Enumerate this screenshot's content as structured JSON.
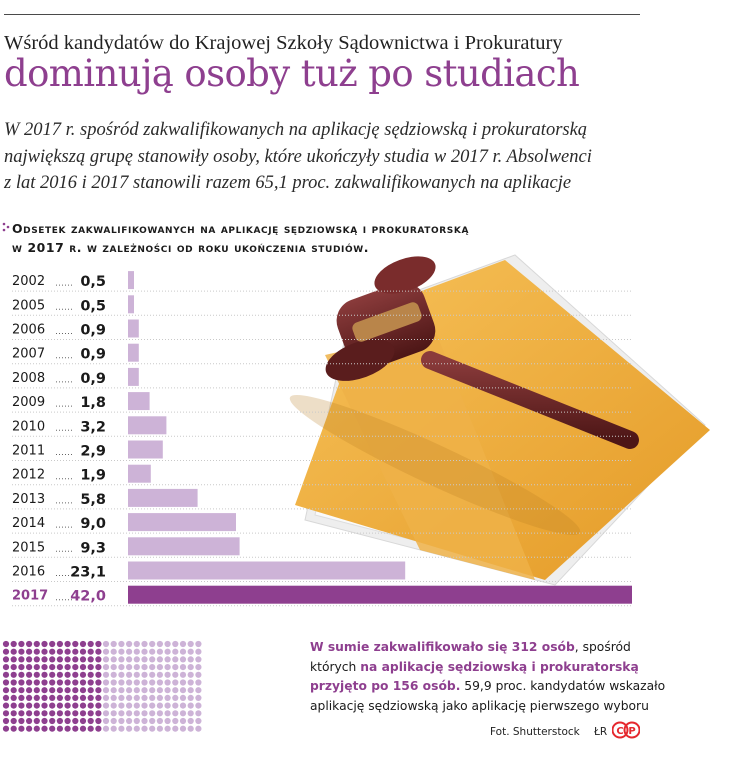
{
  "header": {
    "kicker": "Wśród kandydatów do Krajowej Szkoły Sądownictwa i Prokuratury",
    "headline": "dominują osoby tuż po studiach",
    "lead_lines": [
      "W 2017 r. spośród zakwalifikowanych na aplikację sędziowską i prokuratorską",
      "największą grupę stanowiły osoby, które ukończyły studia w 2017 r. Absolwenci",
      "z lat 2016 i 2017 stanowili razem 65,1 proc. zakwalifikowanych na aplikacje"
    ]
  },
  "chart_title_lines": [
    "Odsetek zakwalifikowanych na aplikację sędziowską i prokuratorską",
    "w 2017 r. w zależności od roku ukończenia studiów."
  ],
  "chart_data": {
    "type": "bar",
    "orientation": "horizontal",
    "categories": [
      "2002",
      "2005",
      "2006",
      "2007",
      "2008",
      "2009",
      "2010",
      "2011",
      "2012",
      "2013",
      "2014",
      "2015",
      "2016",
      "2017"
    ],
    "values": [
      0.5,
      0.5,
      0.9,
      0.9,
      0.9,
      1.8,
      3.2,
      2.9,
      1.9,
      5.8,
      9.0,
      9.3,
      23.1,
      42.0
    ],
    "value_labels": [
      "0,5",
      "0,5",
      "0,9",
      "0,9",
      "0,9",
      "1,8",
      "3,2",
      "2,9",
      "1,9",
      "5,8",
      "9,0",
      "9,3",
      "23,1",
      "42,0"
    ],
    "highlight_category": "2017",
    "xlim": [
      0,
      42
    ],
    "grid": true,
    "colors": {
      "bar": "#cdb3d7",
      "highlight": "#8e3f8f",
      "grid": "#c9c9c9"
    }
  },
  "summary": {
    "part1": "W sumie zakwalifikowało się 312 osób",
    "part2": ", spośród których ",
    "part3": "na aplikację sędziowską i prokuratorską przyjęto po 156 osób.",
    "part4": " 59,9 proc. kandydatów wskazało aplikację sędziowską jako aplikację pierwszego wyboru"
  },
  "dot_chart": {
    "total": 312,
    "groups": 2,
    "per_group": 156,
    "colors": {
      "group_1": "#8e3f8f",
      "group_2": "#cdb3d7"
    }
  },
  "credit": "Fot. Shutterstock",
  "initials": "ŁR",
  "logo_text": "CP",
  "colors": {
    "accent": "#8e3f8f",
    "light": "#cdb3d7",
    "logo": "#e5282e"
  }
}
